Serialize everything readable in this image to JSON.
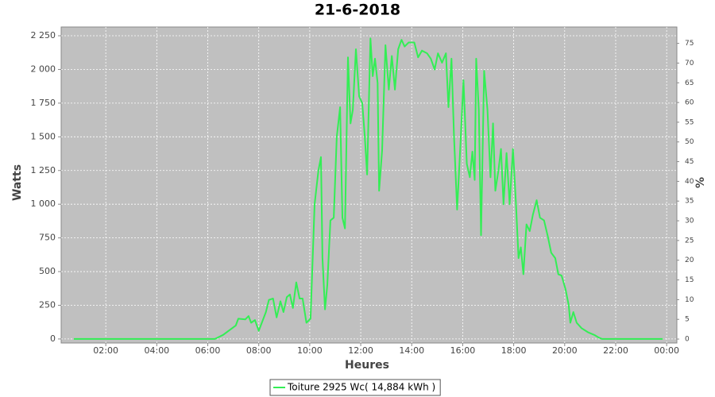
{
  "chart_data": {
    "type": "line",
    "title": "21-6-2018",
    "xlabel": "Heures",
    "ylabel": "Watts",
    "y2label": "%",
    "grid": true,
    "legend": "bottom",
    "background": "#c0c0c0",
    "xlim": [
      0.25,
      24.4
    ],
    "xticks": [
      {
        "value": 2,
        "label": "02:00"
      },
      {
        "value": 4,
        "label": "04:00"
      },
      {
        "value": 6,
        "label": "06:00"
      },
      {
        "value": 8,
        "label": "08:00"
      },
      {
        "value": 10,
        "label": "10:00"
      },
      {
        "value": 12,
        "label": "12:00"
      },
      {
        "value": 14,
        "label": "14:00"
      },
      {
        "value": 16,
        "label": "16:00"
      },
      {
        "value": 18,
        "label": "18:00"
      },
      {
        "value": 20,
        "label": "20:00"
      },
      {
        "value": 22,
        "label": "22:00"
      },
      {
        "value": 24,
        "label": "00:00"
      }
    ],
    "ylim": [
      -30,
      2315
    ],
    "yticks": [
      0,
      250,
      500,
      750,
      {
        "value": 1000,
        "label": "1 000"
      },
      {
        "value": 1250,
        "label": "1 250"
      },
      {
        "value": 1500,
        "label": "1 500"
      },
      {
        "value": 1750,
        "label": "1 750"
      },
      {
        "value": 2000,
        "label": "2 000"
      },
      {
        "value": 2250,
        "label": "2 250"
      }
    ],
    "y2lim": [
      -1,
      79.15
    ],
    "y2ticks": [
      0,
      5,
      10,
      15,
      20,
      25,
      30,
      35,
      40,
      45,
      50,
      55,
      60,
      65,
      70,
      75
    ],
    "x": [
      0.75,
      6.0,
      6.28,
      6.6,
      7.1,
      7.2,
      7.47,
      7.6,
      7.7,
      7.85,
      8.0,
      8.28,
      8.4,
      8.56,
      8.7,
      8.85,
      8.97,
      9.1,
      9.22,
      9.34,
      9.47,
      9.6,
      9.72,
      9.87,
      10.03,
      10.19,
      10.34,
      10.44,
      10.5,
      10.6,
      10.69,
      10.81,
      10.94,
      11.06,
      11.19,
      11.28,
      11.38,
      11.5,
      11.6,
      11.69,
      11.81,
      11.94,
      12.06,
      12.16,
      12.25,
      12.38,
      12.47,
      12.56,
      12.66,
      12.72,
      12.84,
      12.97,
      13.1,
      13.22,
      13.34,
      13.47,
      13.6,
      13.72,
      13.88,
      14.1,
      14.25,
      14.4,
      14.6,
      14.75,
      14.9,
      15.03,
      15.19,
      15.34,
      15.44,
      15.56,
      15.66,
      15.78,
      15.9,
      16.03,
      16.16,
      16.28,
      16.38,
      16.47,
      16.53,
      16.63,
      16.72,
      16.84,
      16.97,
      17.09,
      17.19,
      17.28,
      17.4,
      17.5,
      17.6,
      17.72,
      17.84,
      17.97,
      18.09,
      18.19,
      18.28,
      18.38,
      18.5,
      18.63,
      18.75,
      18.9,
      19.03,
      19.19,
      19.34,
      19.47,
      19.63,
      19.75,
      19.88,
      20.03,
      20.16,
      20.22,
      20.34,
      20.47,
      20.66,
      20.91,
      21.16,
      21.34,
      21.47,
      23.85
    ],
    "series": [
      {
        "name": "Toiture 2925 Wc( 14,884 kWh )",
        "color": "#33ee55",
        "values": [
          0,
          0,
          0,
          30,
          100,
          150,
          145,
          170,
          120,
          140,
          60,
          200,
          290,
          300,
          160,
          280,
          200,
          310,
          330,
          230,
          420,
          300,
          300,
          120,
          150,
          1000,
          1250,
          1350,
          600,
          220,
          400,
          880,
          900,
          1500,
          1720,
          900,
          820,
          2090,
          1600,
          1700,
          2150,
          1800,
          1750,
          1500,
          1220,
          2230,
          1950,
          2080,
          1900,
          1100,
          1400,
          2180,
          1850,
          2100,
          1850,
          2150,
          2220,
          2170,
          2200,
          2200,
          2090,
          2140,
          2120,
          2080,
          2000,
          2120,
          2050,
          2120,
          1720,
          2080,
          1500,
          960,
          1400,
          1920,
          1300,
          1200,
          1390,
          1180,
          2080,
          1700,
          770,
          1990,
          1700,
          1200,
          1600,
          1100,
          1250,
          1410,
          1000,
          1380,
          1000,
          1410,
          1000,
          600,
          680,
          480,
          850,
          800,
          920,
          1030,
          900,
          880,
          760,
          640,
          600,
          480,
          470,
          370,
          250,
          120,
          200,
          120,
          80,
          50,
          30,
          10,
          0,
          0
        ]
      }
    ]
  }
}
